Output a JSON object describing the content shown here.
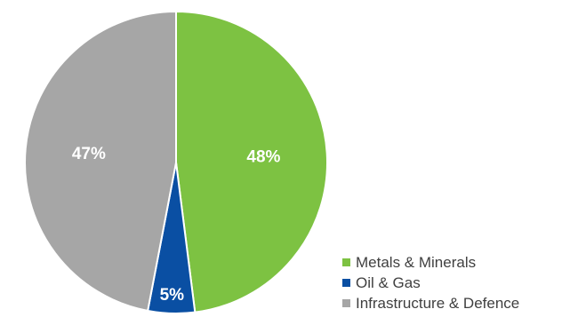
{
  "chart_data": {
    "type": "pie",
    "slices": [
      {
        "label": "Metals & Minerals",
        "value": 48,
        "display": "48%",
        "color": "#7DC242"
      },
      {
        "label": "Oil & Gas",
        "value": 5,
        "display": "5%",
        "color": "#0A4FA3"
      },
      {
        "label": "Infrastructure & Defence",
        "value": 47,
        "display": "47%",
        "color": "#A6A6A6"
      }
    ],
    "start_angle_deg": 0,
    "direction": "clockwise",
    "legend_position": "bottom-right",
    "title": ""
  }
}
